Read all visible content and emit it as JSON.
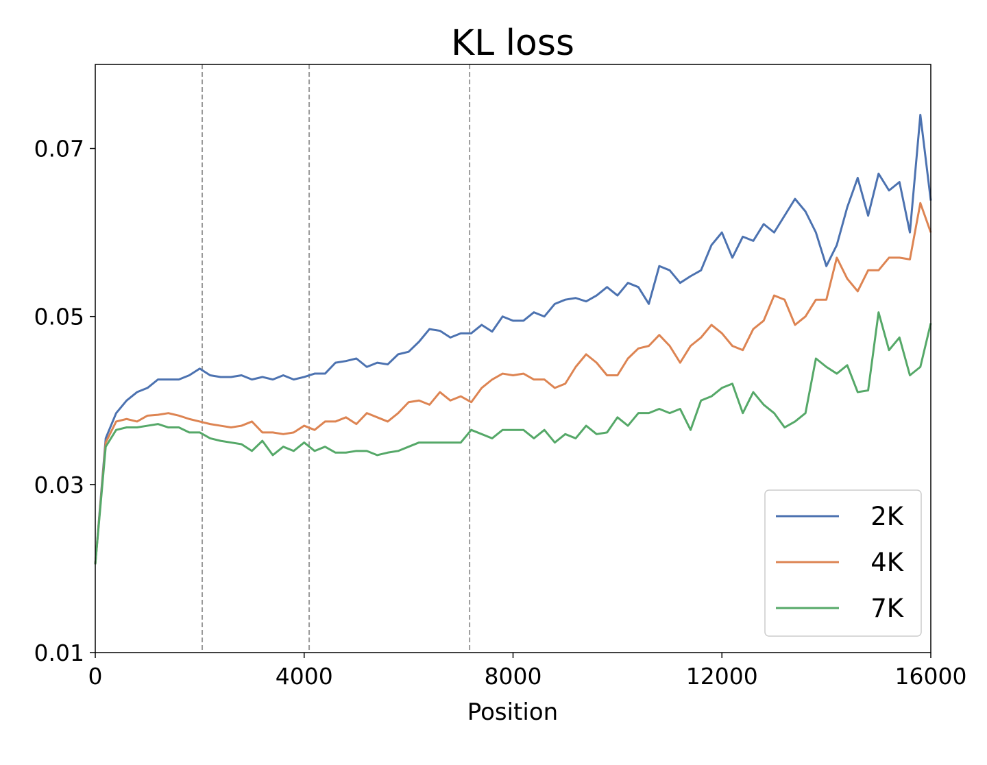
{
  "chart_data": {
    "type": "line",
    "title": "KL loss",
    "xlabel": "Position",
    "x": [
      0,
      200,
      400,
      600,
      800,
      1000,
      1200,
      1400,
      1600,
      1800,
      2000,
      2200,
      2400,
      2600,
      2800,
      3000,
      3200,
      3400,
      3600,
      3800,
      4000,
      4200,
      4400,
      4600,
      4800,
      5000,
      5200,
      5400,
      5600,
      5800,
      6000,
      6200,
      6400,
      6600,
      6800,
      7000,
      7200,
      7400,
      7600,
      7800,
      8000,
      8200,
      8400,
      8600,
      8800,
      9000,
      9200,
      9400,
      9600,
      9800,
      10000,
      10200,
      10400,
      10600,
      10800,
      11000,
      11200,
      11400,
      11600,
      11800,
      12000,
      12200,
      12400,
      12600,
      12800,
      13000,
      13200,
      13400,
      13600,
      13800,
      14000,
      14200,
      14400,
      14600,
      14800,
      15000,
      15200,
      15400,
      15600,
      15800,
      16000
    ],
    "series": [
      {
        "name": "2K",
        "color": "#4c72b0",
        "values": [
          0.0205,
          0.0355,
          0.0385,
          0.04,
          0.041,
          0.0415,
          0.0425,
          0.0425,
          0.0425,
          0.043,
          0.0438,
          0.043,
          0.0428,
          0.0428,
          0.043,
          0.0425,
          0.0428,
          0.0425,
          0.043,
          0.0425,
          0.0428,
          0.0432,
          0.0432,
          0.0445,
          0.0447,
          0.045,
          0.044,
          0.0445,
          0.0443,
          0.0455,
          0.0458,
          0.047,
          0.0485,
          0.0483,
          0.0475,
          0.048,
          0.048,
          0.049,
          0.0482,
          0.05,
          0.0495,
          0.0495,
          0.0505,
          0.05,
          0.0515,
          0.052,
          0.0522,
          0.0518,
          0.0525,
          0.0535,
          0.0525,
          0.054,
          0.0535,
          0.0515,
          0.056,
          0.0555,
          0.054,
          0.0548,
          0.0555,
          0.0585,
          0.06,
          0.057,
          0.0595,
          0.059,
          0.061,
          0.06,
          0.062,
          0.064,
          0.0625,
          0.06,
          0.056,
          0.0585,
          0.063,
          0.0665,
          0.062,
          0.067,
          0.065,
          0.066,
          0.06,
          0.074,
          0.0638
        ]
      },
      {
        "name": "4K",
        "color": "#dd8452",
        "values": [
          0.0205,
          0.035,
          0.0375,
          0.0378,
          0.0375,
          0.0382,
          0.0383,
          0.0385,
          0.0382,
          0.0378,
          0.0375,
          0.0372,
          0.037,
          0.0368,
          0.037,
          0.0375,
          0.0362,
          0.0362,
          0.036,
          0.0362,
          0.037,
          0.0365,
          0.0375,
          0.0375,
          0.038,
          0.0372,
          0.0385,
          0.038,
          0.0375,
          0.0385,
          0.0398,
          0.04,
          0.0395,
          0.041,
          0.04,
          0.0405,
          0.0398,
          0.0415,
          0.0425,
          0.0432,
          0.043,
          0.0432,
          0.0425,
          0.0425,
          0.0415,
          0.042,
          0.044,
          0.0455,
          0.0445,
          0.043,
          0.043,
          0.045,
          0.0462,
          0.0465,
          0.0478,
          0.0465,
          0.0445,
          0.0465,
          0.0475,
          0.049,
          0.048,
          0.0465,
          0.046,
          0.0485,
          0.0495,
          0.0525,
          0.052,
          0.049,
          0.05,
          0.052,
          0.052,
          0.057,
          0.0545,
          0.053,
          0.0555,
          0.0555,
          0.057,
          0.057,
          0.0568,
          0.0635,
          0.06
        ]
      },
      {
        "name": "7K",
        "color": "#55a868",
        "values": [
          0.0205,
          0.0345,
          0.0365,
          0.0368,
          0.0368,
          0.037,
          0.0372,
          0.0368,
          0.0368,
          0.0362,
          0.0362,
          0.0355,
          0.0352,
          0.035,
          0.0348,
          0.034,
          0.0352,
          0.0335,
          0.0345,
          0.034,
          0.035,
          0.034,
          0.0345,
          0.0338,
          0.0338,
          0.034,
          0.034,
          0.0335,
          0.0338,
          0.034,
          0.0345,
          0.035,
          0.035,
          0.035,
          0.035,
          0.035,
          0.0365,
          0.036,
          0.0355,
          0.0365,
          0.0365,
          0.0365,
          0.0355,
          0.0365,
          0.035,
          0.036,
          0.0355,
          0.037,
          0.036,
          0.0362,
          0.038,
          0.037,
          0.0385,
          0.0385,
          0.039,
          0.0385,
          0.039,
          0.0365,
          0.04,
          0.0405,
          0.0415,
          0.042,
          0.0385,
          0.041,
          0.0395,
          0.0385,
          0.0368,
          0.0375,
          0.0385,
          0.045,
          0.044,
          0.0432,
          0.0442,
          0.041,
          0.0412,
          0.0505,
          0.046,
          0.0475,
          0.043,
          0.044,
          0.0492
        ]
      }
    ],
    "xlim": [
      0,
      16000
    ],
    "ylim": [
      0.01,
      0.08
    ],
    "xticks": [
      0,
      4000,
      8000,
      12000,
      16000
    ],
    "yticks": [
      0.01,
      0.03,
      0.05,
      0.07
    ],
    "vlines": [
      2048,
      4096,
      7168
    ],
    "legend": "lower right"
  }
}
